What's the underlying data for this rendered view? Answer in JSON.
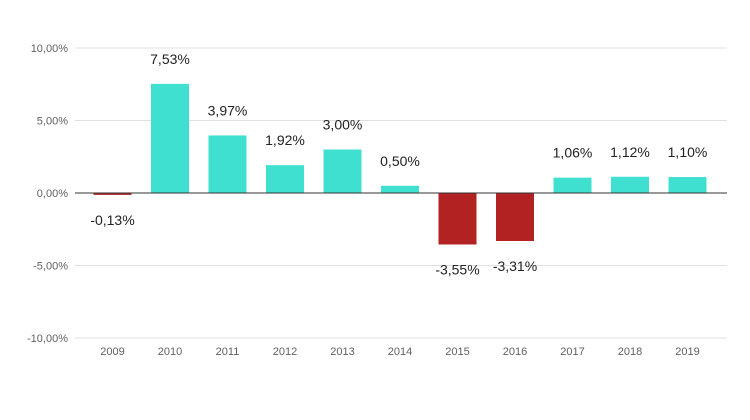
{
  "chart_data": {
    "type": "bar",
    "categories": [
      "2009",
      "2010",
      "2011",
      "2012",
      "2013",
      "2014",
      "2015",
      "2016",
      "2017",
      "2018",
      "2019"
    ],
    "values": [
      -0.13,
      7.53,
      3.97,
      1.92,
      3.0,
      0.5,
      -3.55,
      -3.31,
      1.06,
      1.12,
      1.1
    ],
    "data_labels": [
      "-0,13%",
      "7,53%",
      "3,97%",
      "1,92%",
      "3,00%",
      "0,50%",
      "-3,55%",
      "-3,31%",
      "1,06%",
      "1,12%",
      "1,10%"
    ],
    "y_ticks": [
      10,
      5,
      0,
      -5,
      -10
    ],
    "y_tick_labels": [
      "10,00%",
      "5,00%",
      "0,00%",
      "-5,00%",
      "-10,00%"
    ],
    "ylim": [
      -10,
      10
    ],
    "grid": true,
    "legend": "none",
    "colors": {
      "positive": "#40E0D0",
      "negative": "#B22222",
      "grid": "#E0E0E0",
      "zero_line": "#333333"
    }
  }
}
